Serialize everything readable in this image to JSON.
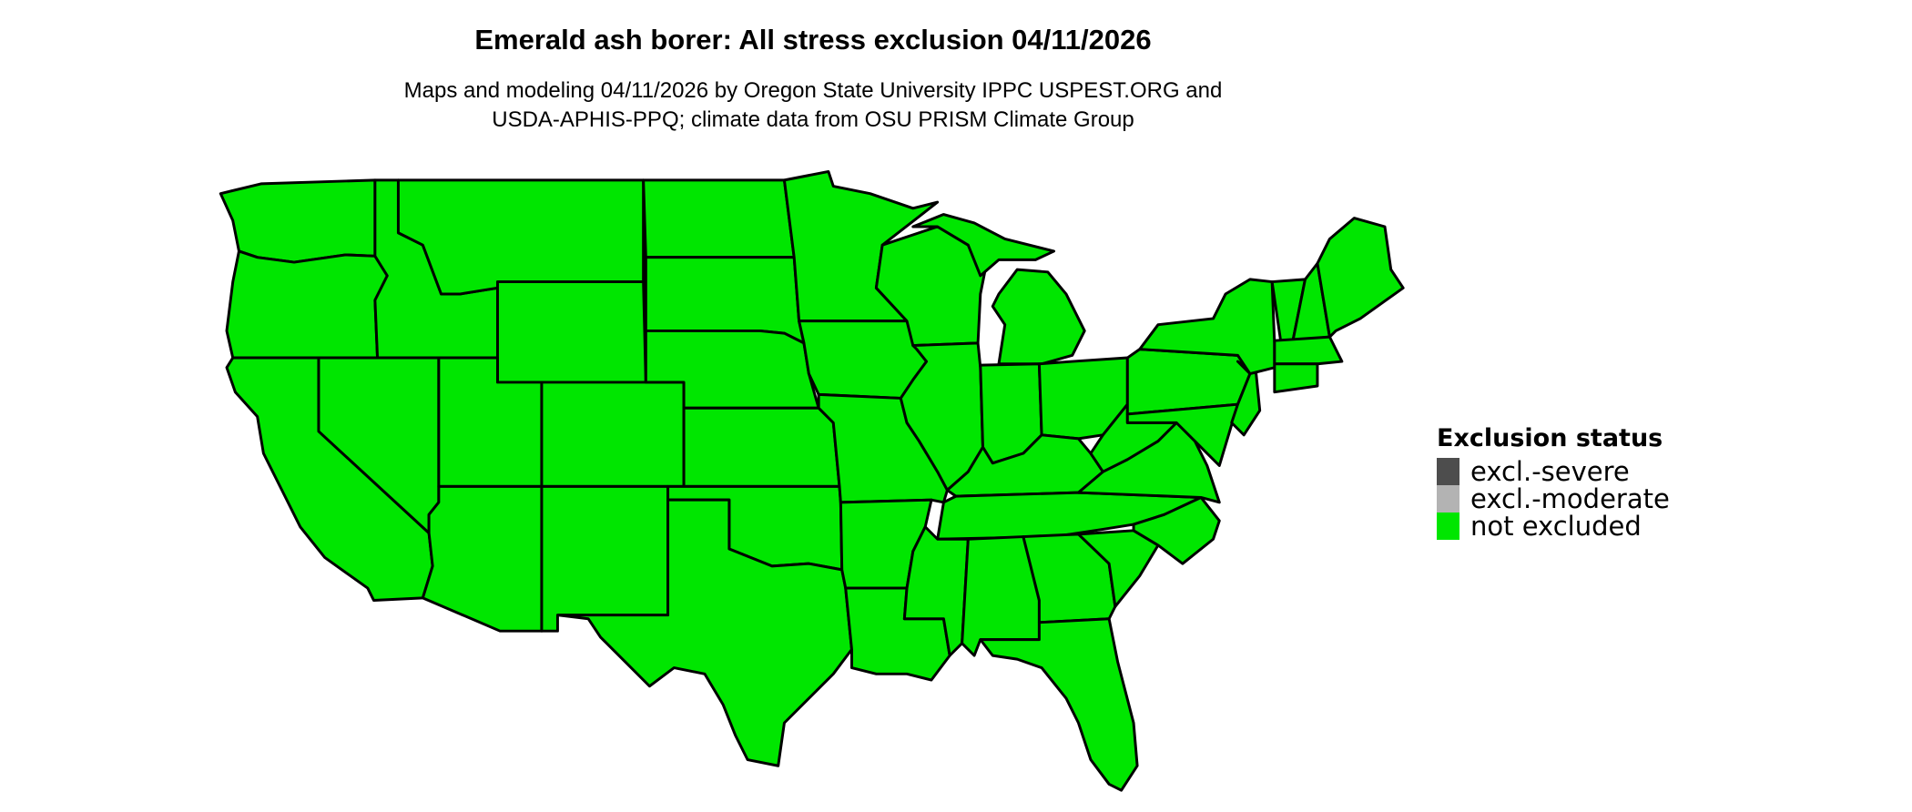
{
  "title": "Emerald ash borer: All stress exclusion 04/11/2026",
  "subtitle": [
    "Maps and modeling 04/11/2026 by Oregon State University IPPC USPEST.ORG and",
    "USDA-APHIS-PPQ; climate data from OSU PRISM Climate Group"
  ],
  "legend": {
    "title": "Exclusion status",
    "items": [
      {
        "label": "excl.-severe",
        "color": "#4d4d4d"
      },
      {
        "label": "excl.-moderate",
        "color": "#b3b3b3"
      },
      {
        "label": "not excluded",
        "color": "#00e600"
      }
    ]
  },
  "map": {
    "region": "Contiguous United States",
    "status_shown": "not excluded",
    "fill_color": "#00e600",
    "border_color": "#000000"
  }
}
